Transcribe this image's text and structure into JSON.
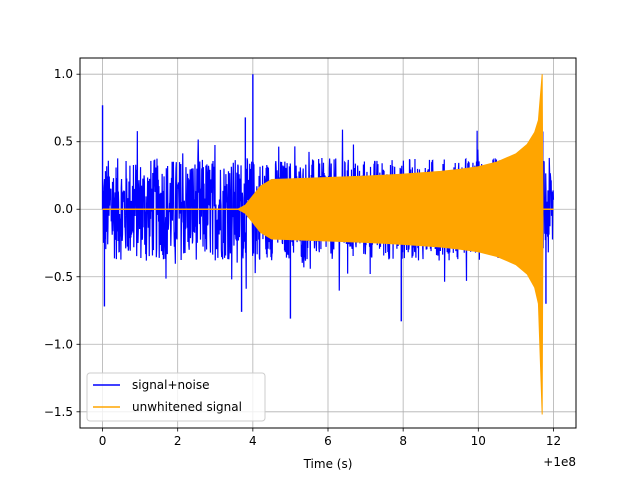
{
  "chart_data": {
    "type": "line",
    "title": "",
    "xlabel": "Time (s)",
    "ylabel": "",
    "x_offset_label": "+1e8",
    "xlim": [
      -0.6,
      12.6
    ],
    "ylim": [
      -1.62,
      1.12
    ],
    "xticks": [
      0,
      2,
      4,
      6,
      8,
      10,
      12
    ],
    "xtick_labels": [
      "0",
      "2",
      "4",
      "6",
      "8",
      "10",
      "12"
    ],
    "yticks": [
      1.0,
      0.5,
      0.0,
      -0.5,
      -1.0,
      -1.5
    ],
    "ytick_labels": [
      "1.0",
      "0.5",
      "0.0",
      "−0.5",
      "−1.0",
      "−1.5"
    ],
    "grid": true,
    "legend_position": "lower-left",
    "series": [
      {
        "name": "signal+noise",
        "color": "#0000ff",
        "description_envelope": {
          "x": [
            0.0,
            11.8,
            12.0
          ],
          "typical_amplitude": 0.38,
          "peak_max": 1.0,
          "peak_min": -0.83
        }
      },
      {
        "name": "unwhitened signal",
        "color": "#ffa500",
        "envelope": {
          "x": [
            0.0,
            3.6,
            3.8,
            4.0,
            4.2,
            4.5,
            5,
            6,
            7,
            8,
            9,
            9.5,
            10,
            10.5,
            11.0,
            11.3,
            11.5,
            11.6,
            11.7,
            11.72,
            12.0
          ],
          "upper": [
            0.0,
            0.0,
            0.03,
            0.1,
            0.17,
            0.22,
            0.225,
            0.235,
            0.245,
            0.26,
            0.28,
            0.295,
            0.315,
            0.35,
            0.41,
            0.48,
            0.57,
            0.66,
            1.0,
            0.0,
            0.0
          ],
          "lower": [
            0.0,
            0.0,
            -0.03,
            -0.1,
            -0.17,
            -0.22,
            -0.225,
            -0.235,
            -0.245,
            -0.26,
            -0.28,
            -0.295,
            -0.315,
            -0.35,
            -0.41,
            -0.48,
            -0.58,
            -0.7,
            -1.52,
            0.0,
            0.0
          ]
        }
      }
    ]
  }
}
